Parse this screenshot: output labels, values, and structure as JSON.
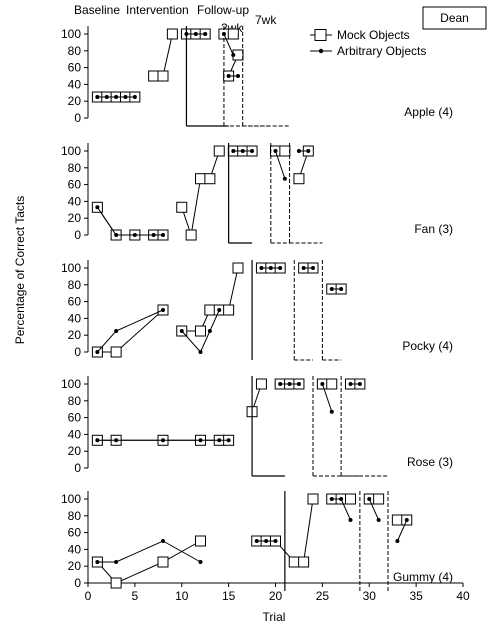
{
  "chart_data": {
    "type": "scatter",
    "participant": "Dean",
    "phase_labels": [
      "Baseline",
      "Intervention",
      "Follow-up",
      "2wk",
      "7wk"
    ],
    "xlabel": "Trial",
    "ylabel": "Percentage of Correct Tacts",
    "xlim": [
      0,
      40
    ],
    "ylim": [
      0,
      100
    ],
    "x_ticks": [
      0,
      5,
      10,
      15,
      20,
      25,
      30,
      35,
      40
    ],
    "y_ticks": [
      0,
      20,
      40,
      60,
      80,
      100
    ],
    "legend": {
      "placement": "top-right",
      "entries": [
        "Mock Objects",
        "Arbitrary Objects"
      ]
    },
    "panels": [
      {
        "label": "Apple (4)",
        "phase_changes": [
          10.5,
          14.5,
          16.5
        ],
        "series": [
          {
            "name": "Mock Objects",
            "baseline": [
              [
                1,
                25
              ],
              [
                2,
                25
              ],
              [
                3,
                25
              ],
              [
                4,
                25
              ],
              [
                5,
                25
              ]
            ],
            "intervention": [
              [
                7,
                50
              ],
              [
                8,
                50
              ],
              [
                9,
                100
              ]
            ],
            "mastery": [
              [
                10.5,
                100
              ],
              [
                11.5,
                100
              ],
              [
                12.5,
                100
              ]
            ],
            "followup_2wk": [
              [
                14.5,
                100
              ],
              [
                15.5,
                100
              ]
            ],
            "followup_7wk": [
              [
                15,
                50
              ],
              [
                16,
                75
              ]
            ]
          },
          {
            "name": "Arbitrary Objects",
            "baseline": [
              [
                1,
                25
              ],
              [
                2,
                25
              ],
              [
                3,
                25
              ],
              [
                4,
                25
              ],
              [
                5,
                25
              ]
            ],
            "mastery": [
              [
                10.5,
                100
              ],
              [
                11.5,
                100
              ],
              [
                12.5,
                100
              ]
            ],
            "followup_2wk": [
              [
                14.5,
                100
              ],
              [
                15.5,
                75
              ]
            ],
            "followup_7wk": [
              [
                15,
                50
              ],
              [
                16,
                50
              ]
            ]
          }
        ]
      },
      {
        "label": "Fan (3)",
        "phase_changes": [
          15,
          19.5,
          21.5
        ],
        "series": [
          {
            "name": "Mock Objects",
            "baseline": [
              [
                1,
                33
              ],
              [
                3,
                0
              ],
              [
                5,
                0
              ],
              [
                7,
                0
              ],
              [
                8,
                0
              ]
            ],
            "intervention": [
              [
                10,
                33
              ],
              [
                11,
                0
              ],
              [
                12,
                67
              ],
              [
                13,
                67
              ],
              [
                14,
                100
              ]
            ],
            "mastery": [
              [
                15.5,
                100
              ],
              [
                16.5,
                100
              ],
              [
                17.5,
                100
              ]
            ],
            "followup_2wk": [
              [
                20,
                100
              ],
              [
                21,
                100
              ]
            ],
            "followup_7wk": [
              [
                22.5,
                67
              ],
              [
                23.5,
                100
              ]
            ]
          },
          {
            "name": "Arbitrary Objects",
            "baseline": [
              [
                1,
                33
              ],
              [
                3,
                0
              ],
              [
                5,
                0
              ],
              [
                7,
                0
              ],
              [
                8,
                0
              ]
            ],
            "mastery": [
              [
                15.5,
                100
              ],
              [
                16.5,
                100
              ],
              [
                17.5,
                100
              ]
            ],
            "followup_2wk": [
              [
                20,
                100
              ],
              [
                21,
                67
              ]
            ],
            "followup_7wk": [
              [
                22.5,
                100
              ],
              [
                23.5,
                100
              ]
            ]
          }
        ]
      },
      {
        "label": "Pocky (4)",
        "phase_changes": [
          17.5,
          22,
          25
        ],
        "series": [
          {
            "name": "Mock Objects",
            "baseline": [
              [
                1,
                0
              ],
              [
                3,
                0
              ],
              [
                8,
                50
              ]
            ],
            "intervention": [
              [
                10,
                25
              ],
              [
                12,
                25
              ],
              [
                13,
                50
              ],
              [
                14,
                50
              ],
              [
                15,
                50
              ],
              [
                16,
                100
              ]
            ],
            "mastery": [
              [
                18.5,
                100
              ],
              [
                19.5,
                100
              ],
              [
                20.5,
                100
              ]
            ],
            "followup_2wk": [
              [
                23,
                100
              ],
              [
                24,
                100
              ]
            ],
            "followup_7wk": [
              [
                26,
                75
              ],
              [
                27,
                75
              ]
            ]
          },
          {
            "name": "Arbitrary Objects",
            "baseline": [
              [
                1,
                0
              ],
              [
                3,
                25
              ],
              [
                8,
                50
              ]
            ],
            "intervention": [
              [
                10,
                25
              ],
              [
                12,
                0
              ],
              [
                13,
                25
              ],
              [
                14,
                50
              ]
            ],
            "mastery": [
              [
                18.5,
                100
              ],
              [
                19.5,
                100
              ],
              [
                20.5,
                100
              ]
            ],
            "followup_2wk": [
              [
                23,
                100
              ],
              [
                24,
                100
              ]
            ],
            "followup_7wk": [
              [
                26,
                75
              ],
              [
                27,
                75
              ]
            ]
          }
        ]
      },
      {
        "label": "Rose (3)",
        "phase_changes": [
          17.5,
          24,
          27
        ],
        "series": [
          {
            "name": "Mock Objects",
            "baseline": [
              [
                1,
                33
              ],
              [
                3,
                33
              ],
              [
                8,
                33
              ],
              [
                12,
                33
              ],
              [
                14,
                33
              ],
              [
                15,
                33
              ]
            ],
            "intervention": [
              [
                17.5,
                67
              ],
              [
                18.5,
                100
              ]
            ],
            "mastery": [
              [
                20.5,
                100
              ],
              [
                21.5,
                100
              ],
              [
                22.5,
                100
              ]
            ],
            "followup_2wk": [
              [
                25,
                100
              ],
              [
                26,
                100
              ]
            ],
            "followup_7wk": [
              [
                28,
                100
              ],
              [
                29,
                100
              ]
            ]
          },
          {
            "name": "Arbitrary Objects",
            "baseline": [
              [
                1,
                33
              ],
              [
                3,
                33
              ],
              [
                8,
                33
              ],
              [
                12,
                33
              ],
              [
                14,
                33
              ],
              [
                15,
                33
              ]
            ],
            "mastery": [
              [
                20.5,
                100
              ],
              [
                21.5,
                100
              ],
              [
                22.5,
                100
              ]
            ],
            "followup_2wk": [
              [
                25,
                100
              ],
              [
                26,
                67
              ]
            ],
            "followup_7wk": [
              [
                28,
                100
              ],
              [
                29,
                100
              ]
            ]
          }
        ]
      },
      {
        "label": "Gummy (4)",
        "phase_changes": [
          21,
          29,
          32
        ],
        "series": [
          {
            "name": "Mock Objects",
            "baseline": [
              [
                1,
                25
              ],
              [
                3,
                0
              ],
              [
                8,
                25
              ],
              [
                12,
                50
              ]
            ],
            "intervention": [
              [
                18,
                50
              ],
              [
                19,
                50
              ],
              [
                20,
                50
              ],
              [
                22,
                25
              ],
              [
                23,
                25
              ],
              [
                24,
                100
              ]
            ],
            "mastery": [
              [
                26,
                100
              ],
              [
                27,
                100
              ],
              [
                28,
                100
              ]
            ],
            "followup_2wk": [
              [
                30,
                100
              ],
              [
                31,
                100
              ]
            ],
            "followup_7wk": [
              [
                33,
                75
              ],
              [
                34,
                75
              ]
            ]
          },
          {
            "name": "Arbitrary Objects",
            "baseline": [
              [
                1,
                25
              ],
              [
                3,
                25
              ],
              [
                8,
                50
              ],
              [
                12,
                25
              ]
            ],
            "intervention": [
              [
                18,
                50
              ],
              [
                19,
                50
              ],
              [
                20,
                50
              ]
            ],
            "mastery": [
              [
                26,
                100
              ],
              [
                27,
                100
              ],
              [
                28,
                75
              ]
            ],
            "followup_2wk": [
              [
                30,
                100
              ],
              [
                31,
                75
              ]
            ],
            "followup_7wk": [
              [
                33,
                50
              ],
              [
                34,
                75
              ]
            ]
          }
        ]
      }
    ]
  }
}
